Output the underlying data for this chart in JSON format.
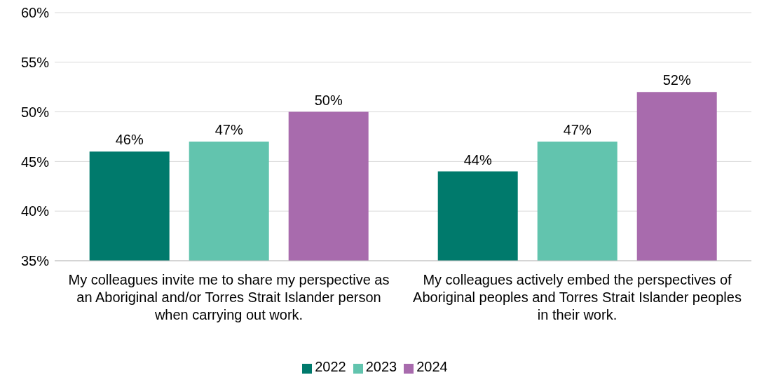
{
  "chart_data": {
    "type": "bar",
    "categories": [
      "My colleagues invite me to share my perspective as an Aboriginal and/or Torres Strait Islander person when carrying out work.",
      "My colleagues actively embed the perspectives of Aboriginal peoples and Torres Strait Islander peoples in their work."
    ],
    "series": [
      {
        "name": "2022",
        "color": "#007a6c",
        "values": [
          46,
          44
        ],
        "value_labels": [
          "46%",
          "44%"
        ]
      },
      {
        "name": "2023",
        "color": "#62c4ae",
        "values": [
          47,
          47
        ],
        "value_labels": [
          "47%",
          "47%"
        ]
      },
      {
        "name": "2024",
        "color": "#a86bad",
        "values": [
          50,
          52
        ],
        "value_labels": [
          "50%",
          "52%"
        ]
      }
    ],
    "ylim": [
      35,
      60
    ],
    "yticks": [
      {
        "value": 35,
        "label": "35%"
      },
      {
        "value": 40,
        "label": "40%"
      },
      {
        "value": 45,
        "label": "45%"
      },
      {
        "value": 50,
        "label": "50%"
      },
      {
        "value": 55,
        "label": "55%"
      },
      {
        "value": 60,
        "label": "60%"
      }
    ],
    "grid": "y",
    "legend": "bottom"
  }
}
